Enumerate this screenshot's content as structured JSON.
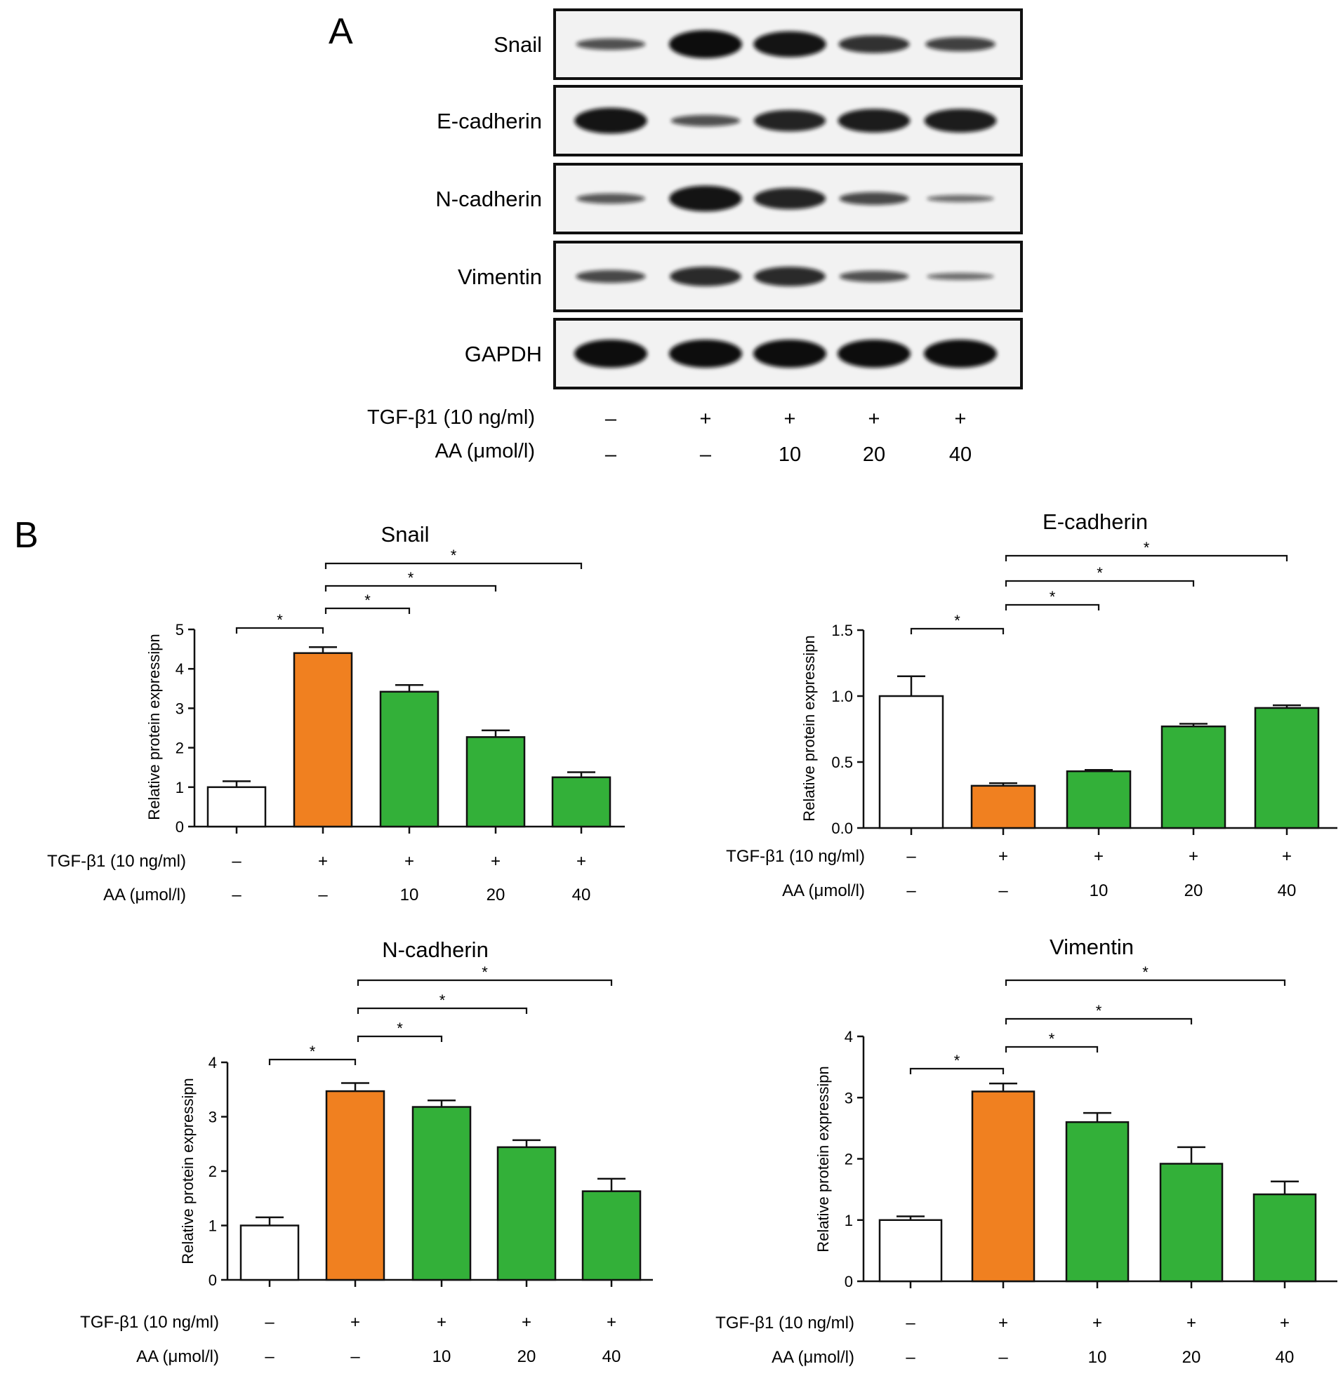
{
  "panel_a": {
    "letter": "A",
    "rows": [
      "Snail",
      "E-cadherin",
      "N-cadherin",
      "Vimentin",
      "GAPDH"
    ],
    "band_intensity": [
      [
        0.55,
        1.0,
        0.95,
        0.75,
        0.65
      ],
      [
        0.95,
        0.55,
        0.85,
        0.9,
        0.9
      ],
      [
        0.5,
        0.95,
        0.85,
        0.6,
        0.35
      ],
      [
        0.6,
        0.8,
        0.8,
        0.55,
        0.35
      ],
      [
        1.0,
        1.0,
        1.0,
        1.0,
        1.0
      ]
    ],
    "conditions": {
      "tgf_label": "TGF-β1 (10 ng/ml)",
      "aa_label": "AA (μmol/l)",
      "tgf": [
        "–",
        "+",
        "+",
        "+",
        "+"
      ],
      "aa": [
        "–",
        "–",
        "10",
        "20",
        "40"
      ]
    }
  },
  "panel_b": {
    "letter": "B"
  },
  "chart_data": [
    {
      "type": "bar",
      "title": "Snail",
      "ylabel": "Relative protein expressipn",
      "ylim": [
        0,
        5
      ],
      "yticks": [
        "0",
        "1",
        "2",
        "3",
        "4",
        "5"
      ],
      "values": [
        1.0,
        4.4,
        3.42,
        2.27,
        1.25
      ],
      "errors": [
        0.15,
        0.15,
        0.17,
        0.17,
        0.13
      ],
      "bar_colors": [
        "#ffffff",
        "#f08020",
        "#33b039",
        "#33b039",
        "#33b039"
      ],
      "tgf_label": "TGF-β1 (10 ng/ml)",
      "aa_label": "AA (μmol/l)",
      "tgf": [
        "–",
        "+",
        "+",
        "+",
        "+"
      ],
      "aa": [
        "–",
        "–",
        "10",
        "20",
        "40"
      ],
      "significance": [
        {
          "from": 0,
          "to": 1,
          "label": "*"
        },
        {
          "from": 1,
          "to": 2,
          "label": "*"
        },
        {
          "from": 1,
          "to": 3,
          "label": "*"
        },
        {
          "from": 1,
          "to": 4,
          "label": "*"
        }
      ]
    },
    {
      "type": "bar",
      "title": "E-cadherin",
      "ylabel": "Relative protein expressipn",
      "ylim": [
        0,
        1.5
      ],
      "yticks": [
        "0.0",
        "0.5",
        "1.0",
        "1.5"
      ],
      "values": [
        1.0,
        0.32,
        0.43,
        0.77,
        0.91
      ],
      "errors": [
        0.15,
        0.02,
        0.01,
        0.02,
        0.02
      ],
      "bar_colors": [
        "#ffffff",
        "#f08020",
        "#33b039",
        "#33b039",
        "#33b039"
      ],
      "tgf_label": "TGF-β1 (10 ng/ml)",
      "aa_label": "AA (μmol/l)",
      "tgf": [
        "–",
        "+",
        "+",
        "+",
        "+"
      ],
      "aa": [
        "–",
        "–",
        "10",
        "20",
        "40"
      ],
      "significance": [
        {
          "from": 0,
          "to": 1,
          "label": "*"
        },
        {
          "from": 1,
          "to": 2,
          "label": "*"
        },
        {
          "from": 1,
          "to": 3,
          "label": "*"
        },
        {
          "from": 1,
          "to": 4,
          "label": "*"
        }
      ]
    },
    {
      "type": "bar",
      "title": "N-cadherin",
      "ylabel": "Relative protein expressipn",
      "ylim": [
        0,
        4
      ],
      "yticks": [
        "0",
        "1",
        "2",
        "3",
        "4"
      ],
      "values": [
        1.0,
        3.47,
        3.18,
        2.44,
        1.63
      ],
      "errors": [
        0.15,
        0.15,
        0.12,
        0.13,
        0.23
      ],
      "bar_colors": [
        "#ffffff",
        "#f08020",
        "#33b039",
        "#33b039",
        "#33b039"
      ],
      "tgf_label": "TGF-β1 (10 ng/ml)",
      "aa_label": "AA (μmol/l)",
      "tgf": [
        "–",
        "+",
        "+",
        "+",
        "+"
      ],
      "aa": [
        "–",
        "–",
        "10",
        "20",
        "40"
      ],
      "significance": [
        {
          "from": 0,
          "to": 1,
          "label": "*"
        },
        {
          "from": 1,
          "to": 2,
          "label": "*"
        },
        {
          "from": 1,
          "to": 3,
          "label": "*"
        },
        {
          "from": 1,
          "to": 4,
          "label": "*"
        }
      ]
    },
    {
      "type": "bar",
      "title": "Vimentin",
      "ylabel": "Relative protein expressipn",
      "ylim": [
        0,
        4
      ],
      "yticks": [
        "0",
        "1",
        "2",
        "3",
        "4"
      ],
      "values": [
        1.0,
        3.1,
        2.6,
        1.92,
        1.42
      ],
      "errors": [
        0.06,
        0.13,
        0.15,
        0.27,
        0.21
      ],
      "bar_colors": [
        "#ffffff",
        "#f08020",
        "#33b039",
        "#33b039",
        "#33b039"
      ],
      "tgf_label": "TGF-β1 (10 ng/ml)",
      "aa_label": "AA (μmol/l)",
      "tgf": [
        "–",
        "+",
        "+",
        "+",
        "+"
      ],
      "aa": [
        "–",
        "–",
        "10",
        "20",
        "40"
      ],
      "significance": [
        {
          "from": 0,
          "to": 1,
          "label": "*"
        },
        {
          "from": 1,
          "to": 2,
          "label": "*"
        },
        {
          "from": 1,
          "to": 3,
          "label": "*"
        },
        {
          "from": 1,
          "to": 4,
          "label": "*"
        }
      ]
    }
  ]
}
